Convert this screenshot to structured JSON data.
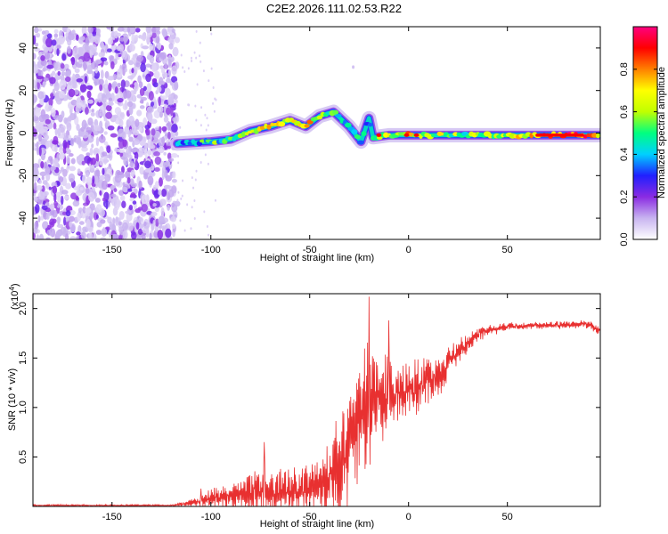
{
  "title": "C2E2.2026.111.02.53.R22",
  "chart_data": [
    {
      "type": "heatmap",
      "name": "spectrogram",
      "xlabel": "Height of straight line (km)",
      "ylabel": "Frequency (Hz)",
      "xlim": [
        -190,
        97
      ],
      "ylim": [
        -50,
        50
      ],
      "xticks": [
        -150,
        -100,
        -50,
        0,
        50
      ],
      "yticks": [
        -40,
        -20,
        0,
        20,
        40
      ],
      "colorbar": {
        "label": "Normalized spectral amplitude",
        "range": [
          0,
          1
        ],
        "ticks": [
          0.0,
          0.2,
          0.4,
          0.6,
          0.8
        ],
        "colors": [
          "#ffffff",
          "#c8b4f0",
          "#8a2be2",
          "#2020ff",
          "#00d0ff",
          "#00ff80",
          "#c0ff00",
          "#ffff00",
          "#ff8000",
          "#ff0000",
          "#ff0080"
        ]
      },
      "noise_region": {
        "x": [
          -190,
          -117
        ],
        "amplitude": 0.2
      },
      "ridge": [
        {
          "x": -117,
          "f": -5,
          "amp": 0.35
        },
        {
          "x": -100,
          "f": -4,
          "amp": 0.45
        },
        {
          "x": -90,
          "f": -3,
          "amp": 0.55
        },
        {
          "x": -80,
          "f": 1,
          "amp": 0.6
        },
        {
          "x": -70,
          "f": 3,
          "amp": 0.65
        },
        {
          "x": -60,
          "f": 6,
          "amp": 0.6
        },
        {
          "x": -52,
          "f": 3,
          "amp": 0.75
        },
        {
          "x": -45,
          "f": 8,
          "amp": 0.6
        },
        {
          "x": -38,
          "f": 10,
          "amp": 0.5
        },
        {
          "x": -30,
          "f": 3,
          "amp": 0.45
        },
        {
          "x": -24,
          "f": -4,
          "amp": 0.35
        },
        {
          "x": -20,
          "f": 7,
          "amp": 0.4
        },
        {
          "x": -18,
          "f": -2,
          "amp": 0.5
        },
        {
          "x": -10,
          "f": -1,
          "amp": 0.6
        },
        {
          "x": 0,
          "f": -1,
          "amp": 0.75
        },
        {
          "x": 10,
          "f": -1,
          "amp": 0.6
        },
        {
          "x": 30,
          "f": -1,
          "amp": 0.55
        },
        {
          "x": 50,
          "f": -1,
          "amp": 0.55
        },
        {
          "x": 65,
          "f": -1,
          "amp": 0.8
        },
        {
          "x": 88,
          "f": -1,
          "amp": 0.9
        },
        {
          "x": 97,
          "f": -1,
          "amp": 0.55
        }
      ]
    },
    {
      "type": "line",
      "name": "snr",
      "xlabel": "Height of straight line (km)",
      "ylabel": "SNR (10 * v/v)",
      "multiplier": "(x10",
      "multiplier_exp": "4",
      "multiplier_close": ")",
      "xlim": [
        -190,
        97
      ],
      "ylim": [
        0,
        2.15
      ],
      "xticks": [
        -150,
        -100,
        -50,
        0,
        50
      ],
      "yticks": [
        0.5,
        1.0,
        1.5,
        2.0
      ],
      "ytick_labels": [
        "0.5",
        "1.0",
        "1.5",
        "2.0"
      ],
      "color": "#e83030",
      "envelope": [
        {
          "x": -190,
          "base": 0.01,
          "amp": 0.01
        },
        {
          "x": -120,
          "base": 0.01,
          "amp": 0.01
        },
        {
          "x": -110,
          "base": 0.03,
          "amp": 0.04
        },
        {
          "x": -100,
          "base": 0.08,
          "amp": 0.1
        },
        {
          "x": -85,
          "base": 0.12,
          "amp": 0.15
        },
        {
          "x": -75,
          "base": 0.15,
          "amp": 0.35
        },
        {
          "x": -65,
          "base": 0.14,
          "amp": 0.3
        },
        {
          "x": -55,
          "base": 0.15,
          "amp": 0.25
        },
        {
          "x": -45,
          "base": 0.2,
          "amp": 0.3
        },
        {
          "x": -35,
          "base": 0.35,
          "amp": 0.6
        },
        {
          "x": -28,
          "base": 0.7,
          "amp": 0.6
        },
        {
          "x": -22,
          "base": 1.0,
          "amp": 0.7
        },
        {
          "x": -15,
          "base": 1.1,
          "amp": 0.5
        },
        {
          "x": -5,
          "base": 1.15,
          "amp": 0.35
        },
        {
          "x": 5,
          "base": 1.2,
          "amp": 0.3
        },
        {
          "x": 15,
          "base": 1.35,
          "amp": 0.25
        },
        {
          "x": 25,
          "base": 1.55,
          "amp": 0.15
        },
        {
          "x": 35,
          "base": 1.75,
          "amp": 0.08
        },
        {
          "x": 50,
          "base": 1.82,
          "amp": 0.04
        },
        {
          "x": 75,
          "base": 1.83,
          "amp": 0.04
        },
        {
          "x": 90,
          "base": 1.85,
          "amp": 0.05
        },
        {
          "x": 97,
          "base": 1.77,
          "amp": 0.05
        }
      ],
      "peaks": [
        {
          "x": -20,
          "y": 2.12
        },
        {
          "x": -10,
          "y": 1.88
        },
        {
          "x": -73,
          "y": 0.65
        },
        {
          "x": -105,
          "y": 0.18
        }
      ]
    }
  ]
}
